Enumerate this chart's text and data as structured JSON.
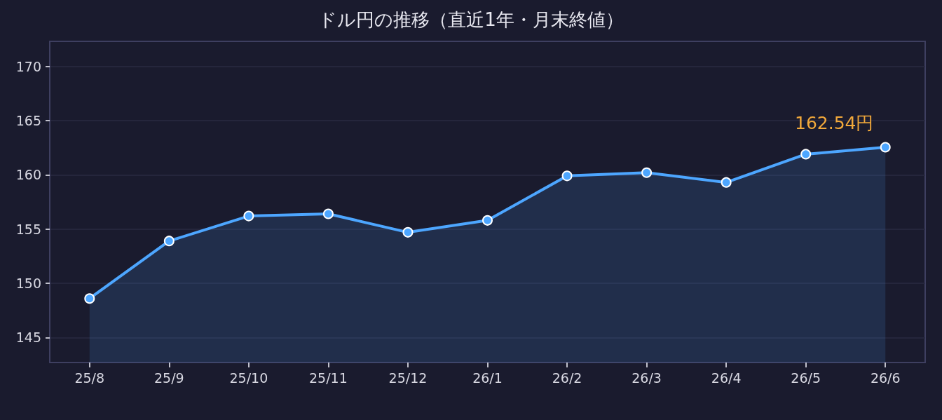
{
  "chart_data": {
    "type": "area",
    "title": "ドル円の推移（直近1年・月末終値）",
    "categories": [
      "25/8",
      "25/9",
      "25/10",
      "25/11",
      "25/12",
      "26/1",
      "26/2",
      "26/3",
      "26/4",
      "26/5",
      "26/6"
    ],
    "values": [
      148.6,
      153.9,
      156.2,
      156.4,
      154.7,
      155.8,
      159.9,
      160.2,
      159.3,
      161.9,
      162.54
    ],
    "value_labels": [
      null,
      null,
      null,
      null,
      null,
      null,
      null,
      null,
      null,
      null,
      "162.54円"
    ],
    "color": "#4da6ff",
    "ylim": [
      142.7,
      172.3
    ],
    "yticks": [
      145,
      150,
      155,
      160,
      165,
      170
    ],
    "grid": "y",
    "marker": "circle",
    "line_style": "solid"
  }
}
